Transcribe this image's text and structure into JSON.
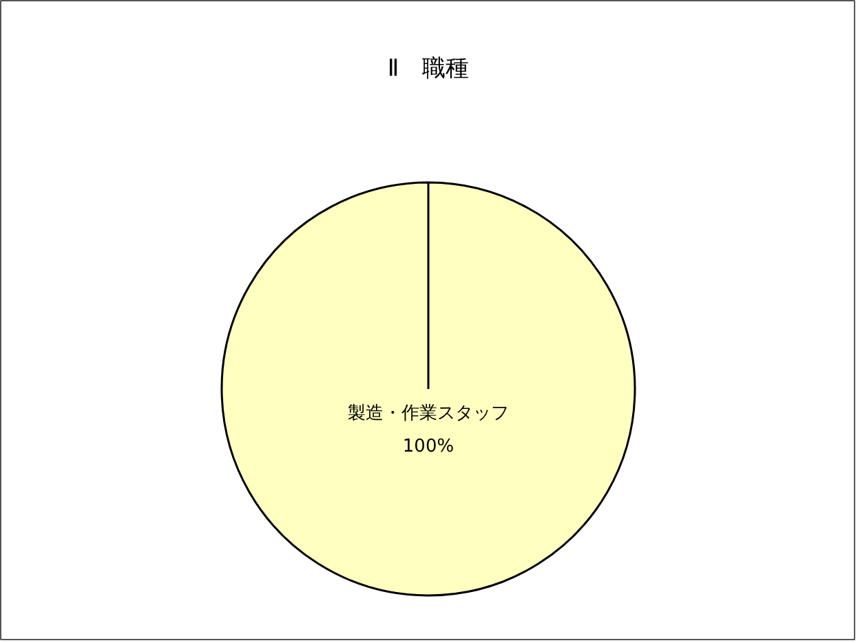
{
  "chart_data": {
    "type": "pie",
    "title": "Ⅱ　職種",
    "categories": [
      "製造・作業スタッフ"
    ],
    "values": [
      100
    ],
    "colors": [
      "#ffffc0"
    ],
    "value_labels": [
      "100%"
    ]
  }
}
